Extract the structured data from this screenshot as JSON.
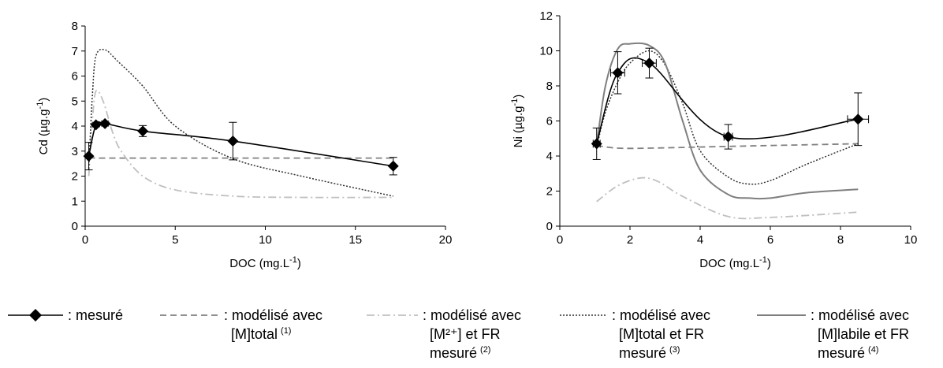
{
  "chart_data": [
    {
      "type": "line",
      "xlabel": "DOC (mg.L",
      "xlabel_sup": "-1",
      "xlabel_end": ")",
      "ylabel": "Cd (µg.g",
      "ylabel_sup": "-1",
      "ylabel_end": ")",
      "xlim": [
        0,
        20
      ],
      "ylim": [
        0,
        8
      ],
      "xticks": [
        0,
        5,
        10,
        15,
        20
      ],
      "yticks": [
        0,
        1,
        2,
        3,
        4,
        5,
        6,
        7,
        8
      ],
      "grid": false,
      "series": [
        {
          "key": "mesure",
          "x": [
            0.2,
            0.6,
            1.1,
            3.2,
            8.2,
            17.1
          ],
          "y": [
            2.8,
            4.05,
            4.1,
            3.8,
            3.4,
            2.4
          ],
          "yerr": [
            0.55,
            0.08,
            0.1,
            0.22,
            0.75,
            0.35
          ]
        },
        {
          "key": "model1",
          "x": [
            0.2,
            0.6,
            1.1,
            3.2,
            8.2,
            17.1
          ],
          "y": [
            2.75,
            2.72,
            2.72,
            2.72,
            2.72,
            2.72
          ]
        },
        {
          "key": "model2",
          "x": [
            0.2,
            0.4,
            0.6,
            1.0,
            1.5,
            2.0,
            3.2,
            5.0,
            8.2,
            12.0,
            17.1
          ],
          "y": [
            2.0,
            4.2,
            5.4,
            5.0,
            3.8,
            3.0,
            2.0,
            1.45,
            1.2,
            1.15,
            1.15
          ]
        },
        {
          "key": "model3",
          "x": [
            0.2,
            0.4,
            0.6,
            1.1,
            1.8,
            3.2,
            5.0,
            8.2,
            12.0,
            17.1
          ],
          "y": [
            2.3,
            5.2,
            6.8,
            7.05,
            6.6,
            5.6,
            4.0,
            2.7,
            2.0,
            1.2
          ]
        }
      ]
    },
    {
      "type": "line",
      "xlabel": "DOC (mg.L",
      "xlabel_sup": "-1",
      "xlabel_end": ")",
      "ylabel": "Ni (µg.g",
      "ylabel_sup": "-1",
      "ylabel_end": ")",
      "xlim": [
        0,
        10
      ],
      "ylim": [
        0,
        12
      ],
      "xticks": [
        0,
        2,
        4,
        6,
        8,
        10
      ],
      "yticks": [
        0,
        2,
        4,
        6,
        8,
        10,
        12
      ],
      "grid": false,
      "series": [
        {
          "key": "mesure",
          "x": [
            1.05,
            1.65,
            2.55,
            4.8,
            8.5
          ],
          "y": [
            4.7,
            8.75,
            9.3,
            5.1,
            6.1
          ],
          "yerr": [
            0.9,
            1.2,
            0.85,
            0.7,
            1.5
          ],
          "xerr": [
            0.1,
            0.2,
            0.2,
            0.12,
            0.3
          ]
        },
        {
          "key": "model1",
          "x": [
            1.05,
            1.65,
            2.55,
            4.8,
            8.5
          ],
          "y": [
            4.6,
            4.45,
            4.45,
            4.55,
            4.7
          ]
        },
        {
          "key": "model2",
          "x": [
            1.05,
            1.65,
            2.3,
            2.8,
            3.5,
            4.8,
            6.0,
            8.5
          ],
          "y": [
            1.4,
            2.3,
            2.75,
            2.55,
            1.7,
            0.55,
            0.5,
            0.8
          ]
        },
        {
          "key": "model3",
          "x": [
            1.05,
            1.3,
            1.65,
            2.0,
            2.55,
            3.0,
            3.5,
            4.0,
            4.8,
            5.4,
            6.0,
            7.0,
            8.5
          ],
          "y": [
            4.5,
            6.5,
            8.2,
            9.3,
            10.0,
            9.2,
            7.0,
            4.3,
            2.8,
            2.4,
            2.6,
            3.5,
            4.7
          ]
        },
        {
          "key": "model4",
          "x": [
            1.05,
            1.3,
            1.65,
            2.0,
            2.55,
            3.0,
            3.5,
            4.0,
            4.8,
            5.4,
            6.0,
            7.0,
            8.5
          ],
          "y": [
            4.6,
            8.0,
            10.1,
            10.4,
            10.3,
            9.3,
            6.0,
            3.2,
            1.8,
            1.6,
            1.6,
            1.9,
            2.1
          ]
        }
      ]
    }
  ],
  "legend": [
    {
      "key": "mesure",
      "lines": [
        ": mesuré"
      ],
      "sup": ""
    },
    {
      "key": "model1",
      "lines": [
        ": modélisé avec",
        "[M]total"
      ],
      "sup": "(1)"
    },
    {
      "key": "model2",
      "lines": [
        ": modélisé avec",
        "[M²⁺] et FR",
        "mesuré"
      ],
      "sup": "(2)"
    },
    {
      "key": "model3",
      "lines": [
        ": modélisé avec",
        "[M]total et FR",
        "mesuré"
      ],
      "sup": "(3)"
    },
    {
      "key": "model4",
      "lines": [
        ": modélisé avec",
        "[M]labile et FR",
        "mesuré"
      ],
      "sup": "(4)"
    }
  ],
  "styles": {
    "mesure": {
      "color": "#000000",
      "dash": "",
      "width": 1.6
    },
    "model1": {
      "color": "#808080",
      "dash": "8,5",
      "width": 1.8
    },
    "model2": {
      "color": "#c0c0c0",
      "dash": "10,4,2,4",
      "width": 1.8
    },
    "model3": {
      "color": "#303030",
      "dash": "2,2",
      "width": 1.5
    },
    "model4": {
      "color": "#7f7f7f",
      "dash": "",
      "width": 2.0
    }
  }
}
